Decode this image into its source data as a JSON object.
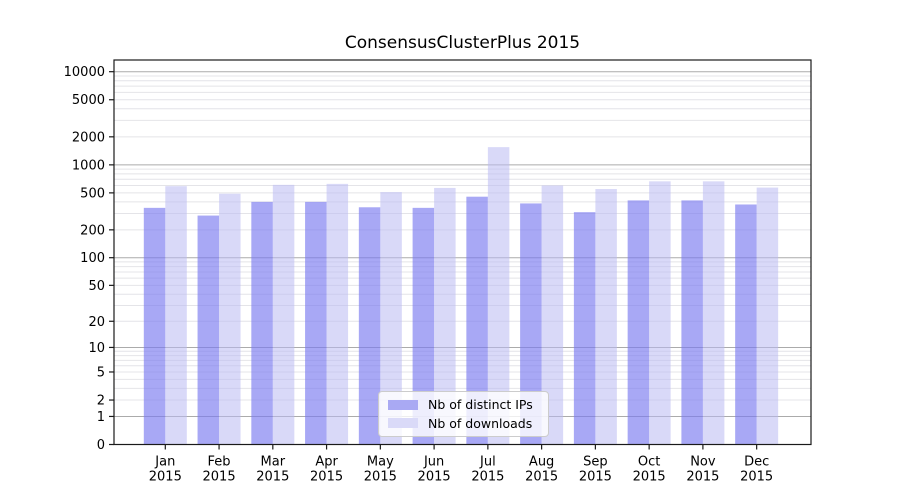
{
  "chart_data": {
    "type": "bar",
    "title": "ConsensusClusterPlus 2015",
    "categories": [
      "Jan",
      "Feb",
      "Mar",
      "Apr",
      "May",
      "Jun",
      "Jul",
      "Aug",
      "Sep",
      "Oct",
      "Nov",
      "Dec"
    ],
    "year_label": "2015",
    "series": [
      {
        "name": "Nb of distinct IPs",
        "color": "#a9a9f3",
        "values": [
          345,
          285,
          400,
          400,
          350,
          345,
          455,
          385,
          310,
          415,
          415,
          375
        ]
      },
      {
        "name": "Nb of downloads",
        "color": "#dadaf8",
        "values": [
          590,
          490,
          610,
          625,
          510,
          565,
          1550,
          600,
          550,
          665,
          665,
          570
        ]
      }
    ],
    "yscale": "log1p",
    "y_ticks": [
      0,
      1,
      2,
      5,
      10,
      20,
      50,
      100,
      200,
      500,
      1000,
      2000,
      5000,
      10000
    ],
    "ylim": [
      0,
      13300
    ],
    "xlabel": "",
    "ylabel": "",
    "grid": "both",
    "legend_position": "lower-center"
  },
  "colors": {
    "bar_ips": "#a9a9f3",
    "bar_downloads": "#dadaf8",
    "grid_major": "#ababab",
    "grid_minor": "#e4e4e8",
    "axis_frame": "#1a1a1a",
    "background": "#ffffff"
  }
}
